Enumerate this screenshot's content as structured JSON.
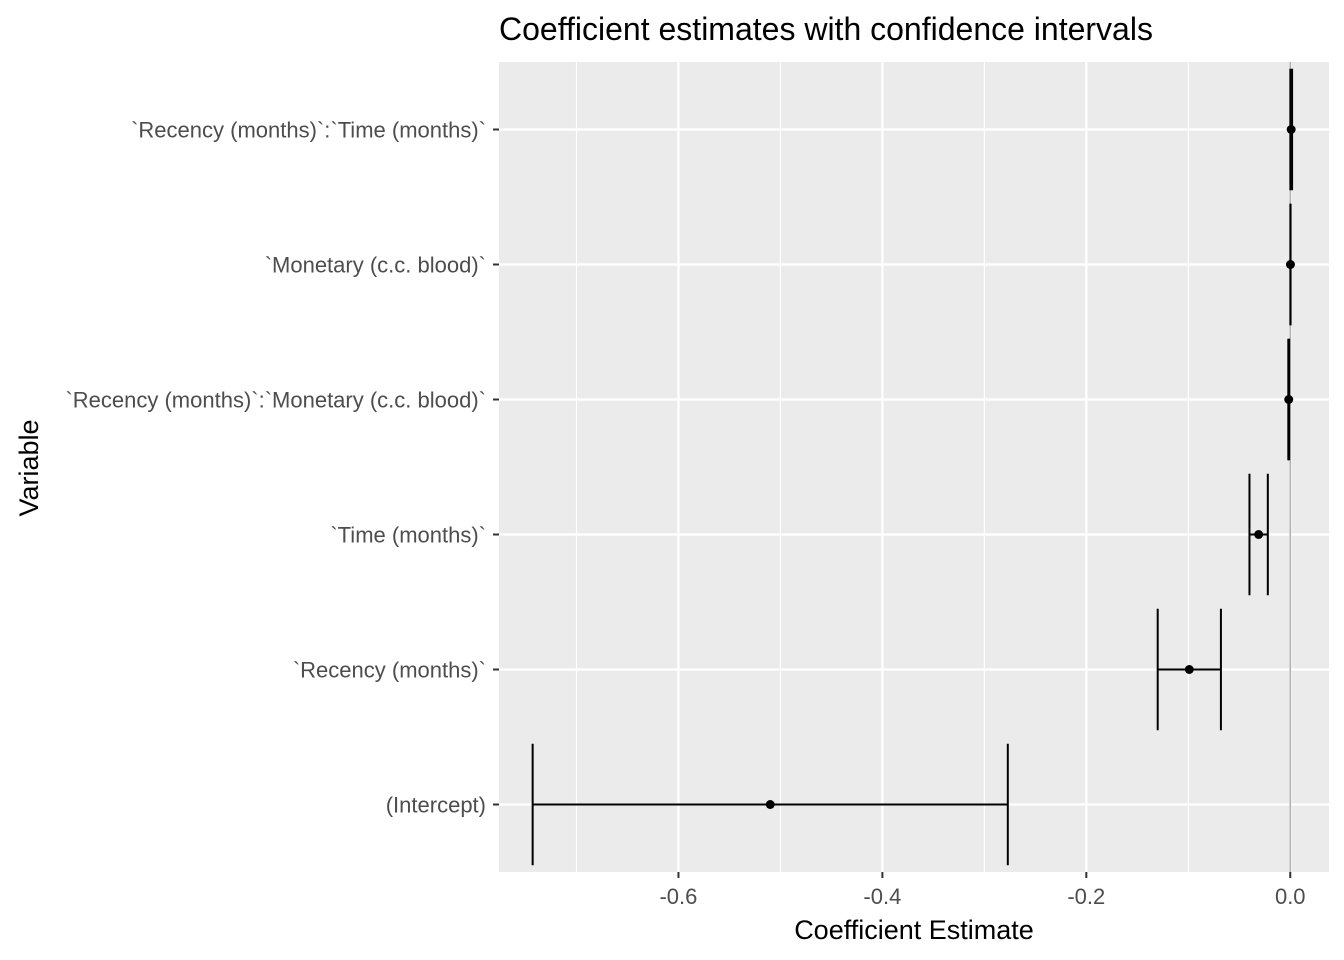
{
  "chart_data": {
    "type": "errorbar",
    "title": "Coefficient estimates with confidence intervals",
    "xlabel": "Coefficient Estimate",
    "ylabel": "Variable",
    "xlim": [
      -0.776,
      0.038
    ],
    "x_ticks": [
      -0.6,
      -0.4,
      -0.2,
      0.0
    ],
    "x_tick_labels": [
      "-0.6",
      "-0.4",
      "-0.2",
      "0.0"
    ],
    "reference_line_x": 0.0,
    "categories": [
      "(Intercept)",
      "`Recency (months)`",
      "`Time (months)`",
      "`Recency (months)`:`Monetary (c.c. blood)`",
      "`Monetary (c.c. blood)`",
      "`Recency (months)`:`Time (months)`"
    ],
    "estimates": [
      -0.51,
      -0.099,
      -0.031,
      -0.0015,
      0.0002,
      0.0009
    ],
    "lower": [
      -0.743,
      -0.13,
      -0.04,
      -0.0019,
      0.0001,
      0.0001
    ],
    "upper": [
      -0.277,
      -0.068,
      -0.022,
      -0.0011,
      0.0003,
      0.0018
    ],
    "grid": true,
    "panel_background": "#ebebeb",
    "grid_color": "#ffffff",
    "reference_line_color": "#b3b3b3",
    "mark_color": "#000000"
  }
}
